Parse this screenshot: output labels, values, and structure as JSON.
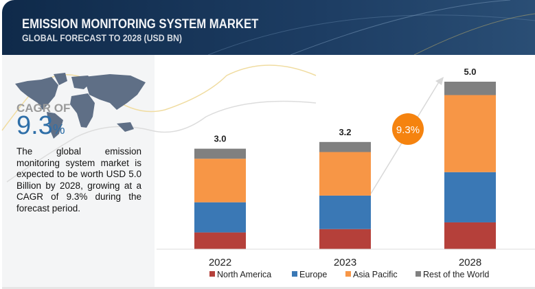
{
  "header": {
    "title": "EMISSION MONITORING SYSTEM MARKET",
    "subtitle": "GLOBAL FORECAST TO 2028 (USD BN)"
  },
  "sidebar": {
    "cagr_label": "CAGR OF",
    "cagr_value": "9.3",
    "cagr_unit": "%",
    "description": "The global emission monitoring system market is expected to be worth USD 5.0 Billion by 2028, growing at a CAGR of 9.3% during the forecast period.",
    "map_icon": "world-map-icon"
  },
  "chart_data": {
    "type": "bar",
    "stacked": true,
    "categories": [
      "2022",
      "2023",
      "2028"
    ],
    "series": [
      {
        "name": "North America",
        "color": "#b5403a",
        "values": [
          0.5,
          0.6,
          0.8
        ]
      },
      {
        "name": "Europe",
        "color": "#3a78b5",
        "values": [
          0.9,
          1.0,
          1.5
        ]
      },
      {
        "name": "Asia Pacific",
        "color": "#f79646",
        "values": [
          1.3,
          1.3,
          2.3
        ]
      },
      {
        "name": "Rest of the World",
        "color": "#808080",
        "values": [
          0.3,
          0.3,
          0.4
        ]
      }
    ],
    "totals": [
      "3.0",
      "3.2",
      "5.0"
    ],
    "annotation": {
      "text": "9.3%",
      "color": "#f5830f"
    },
    "legend": "bottom",
    "grid": false
  }
}
